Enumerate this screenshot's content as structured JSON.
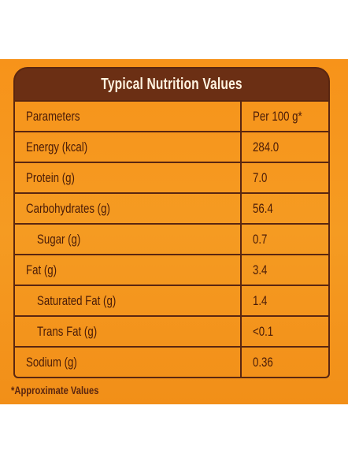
{
  "header": {
    "title": "Typical Nutrition Values"
  },
  "table": {
    "rows": [
      {
        "parameter": "Parameters",
        "value": "Per 100 g*"
      },
      {
        "parameter": "Energy (kcal)",
        "value": "284.0"
      },
      {
        "parameter": "Protein (g)",
        "value": "7.0"
      },
      {
        "parameter": "Carbohydrates (g)",
        "value": "56.4"
      },
      {
        "parameter": "Sugar (g)",
        "value": "0.7"
      },
      {
        "parameter": "Fat (g)",
        "value": "3.4"
      },
      {
        "parameter": "Saturated Fat (g)",
        "value": "1.4"
      },
      {
        "parameter": "Trans Fat (g)",
        "value": "<0.1"
      },
      {
        "parameter": "Sodium (g)",
        "value": "0.36"
      }
    ]
  },
  "footnote": "*Approximate Values",
  "colors": {
    "panel": "#f7931a",
    "title_bar": "#6b2f14",
    "border": "#5a2610",
    "text": "#4a1c08"
  }
}
